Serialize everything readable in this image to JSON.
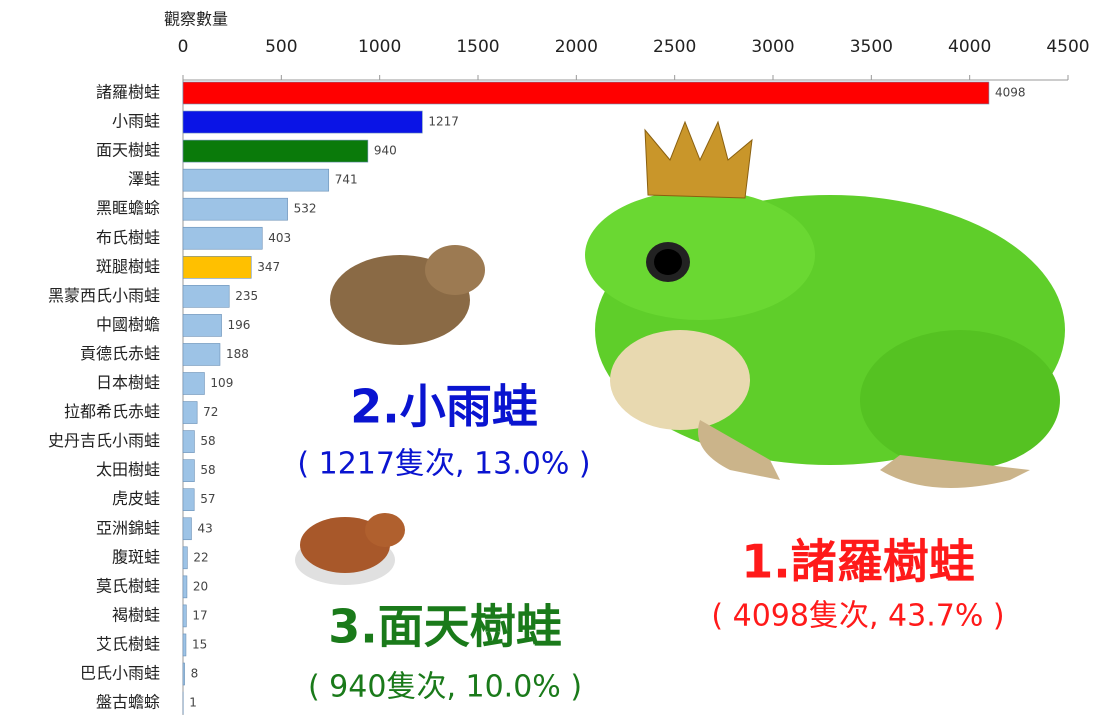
{
  "chart_data": {
    "type": "hbar",
    "xlabel": "觀察數量",
    "categories": [
      "諸羅樹蛙",
      "小雨蛙",
      "面天樹蛙",
      "澤蛙",
      "黑眶蟾蜍",
      "布氏樹蛙",
      "斑腿樹蛙",
      "黑蒙西氏小雨蛙",
      "中國樹蟾",
      "貢德氏赤蛙",
      "日本樹蛙",
      "拉都希氏赤蛙",
      "史丹吉氏小雨蛙",
      "太田樹蛙",
      "虎皮蛙",
      "亞洲錦蛙",
      "腹斑蛙",
      "莫氏樹蛙",
      "褐樹蛙",
      "艾氏樹蛙",
      "巴氏小雨蛙",
      "盤古蟾蜍"
    ],
    "values": [
      4098,
      1217,
      940,
      741,
      532,
      403,
      347,
      235,
      196,
      188,
      109,
      72,
      58,
      58,
      57,
      43,
      22,
      20,
      17,
      15,
      8,
      1
    ],
    "colors": [
      "#ff0000",
      "#0a14e6",
      "#0a7a0a",
      "#9dc3e6",
      "#9dc3e6",
      "#9dc3e6",
      "#ffc000",
      "#9dc3e6",
      "#9dc3e6",
      "#9dc3e6",
      "#9dc3e6",
      "#9dc3e6",
      "#9dc3e6",
      "#9dc3e6",
      "#9dc3e6",
      "#9dc3e6",
      "#9dc3e6",
      "#9dc3e6",
      "#9dc3e6",
      "#9dc3e6",
      "#9dc3e6",
      "#9dc3e6"
    ],
    "xlim": [
      0,
      4500
    ],
    "xticks": [
      0,
      500,
      1000,
      1500,
      2000,
      2500,
      3000,
      3500,
      4000,
      4500
    ],
    "annotations": [
      {
        "text": "1.諸羅樹蛙",
        "color": "#ff1a1a"
      },
      {
        "text": "( 4098隻次, 43.7% )",
        "color": "#ff1a1a"
      },
      {
        "text": "2.小雨蛙",
        "color": "#0a14d0"
      },
      {
        "text": "( 1217隻次, 13.0% )",
        "color": "#0a14d0"
      },
      {
        "text": "3.面天樹蛙",
        "color": "#1a7a1a"
      },
      {
        "text": "( 940隻次, 10.0% )",
        "color": "#1a7a1a"
      }
    ]
  }
}
